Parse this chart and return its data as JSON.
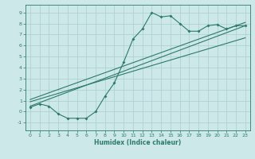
{
  "xlabel": "Humidex (Indice chaleur)",
  "bg_color": "#cce8e8",
  "grid_color": "#aacece",
  "line_color": "#2d7a6a",
  "xlim": [
    -0.5,
    23.5
  ],
  "ylim": [
    -1.7,
    9.7
  ],
  "xticks": [
    0,
    1,
    2,
    3,
    4,
    5,
    6,
    7,
    8,
    9,
    10,
    11,
    12,
    13,
    14,
    15,
    16,
    17,
    18,
    19,
    20,
    21,
    22,
    23
  ],
  "yticks": [
    -1,
    0,
    1,
    2,
    3,
    4,
    5,
    6,
    7,
    8,
    9
  ],
  "curve_x": [
    0,
    1,
    2,
    3,
    4,
    5,
    6,
    7,
    8,
    9,
    10,
    11,
    12,
    13,
    14,
    15,
    16,
    17,
    18,
    19,
    20,
    21,
    22,
    23
  ],
  "curve_y": [
    0.4,
    0.7,
    0.5,
    -0.2,
    -0.6,
    -0.6,
    -0.6,
    0.0,
    1.4,
    2.6,
    4.5,
    6.6,
    7.5,
    9.0,
    8.6,
    8.7,
    8.0,
    7.3,
    7.3,
    7.8,
    7.9,
    7.5,
    7.8,
    7.8
  ],
  "line1_x": [
    0,
    23
  ],
  "line1_y": [
    0.5,
    7.8
  ],
  "line2_x": [
    0,
    23
  ],
  "line2_y": [
    0.9,
    6.7
  ],
  "line3_x": [
    0,
    23
  ],
  "line3_y": [
    1.1,
    8.1
  ]
}
